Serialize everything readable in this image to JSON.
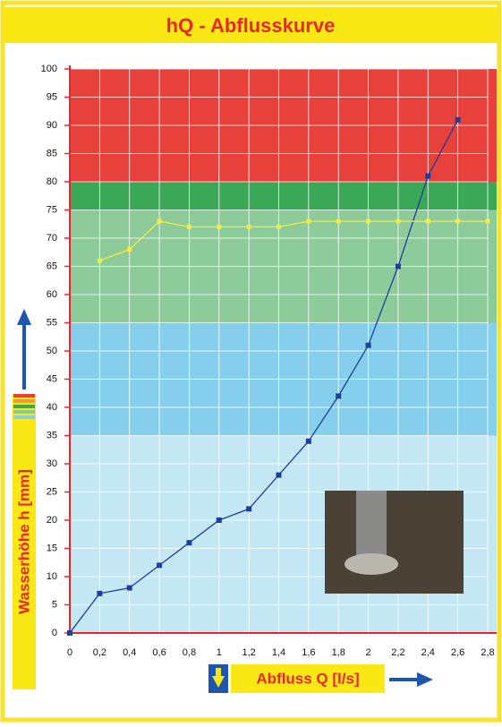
{
  "chart_data": {
    "type": "line",
    "title": "hQ - Abflusskurve",
    "x_label": "Abfluss Q [l/s]",
    "y_label": "Wasserhöhe h [mm]",
    "xlim": [
      0,
      2.8
    ],
    "ylim": [
      0,
      100
    ],
    "xticks": [
      0,
      {
        "value": 0.2,
        "label": "0,2"
      },
      {
        "value": 0.4,
        "label": "0,4"
      },
      {
        "value": 0.6,
        "label": "0,6"
      },
      {
        "value": 0.8,
        "label": "0,8"
      },
      1,
      {
        "value": 1.2,
        "label": "1,2"
      },
      {
        "value": 1.4,
        "label": "1,4"
      },
      {
        "value": 1.6,
        "label": "1,6"
      },
      {
        "value": 1.8,
        "label": "1,8"
      },
      2,
      {
        "value": 2.2,
        "label": "2,2"
      },
      {
        "value": 2.4,
        "label": "2,4"
      },
      {
        "value": 2.6,
        "label": "2,6"
      },
      {
        "value": 2.8,
        "label": "2,8"
      }
    ],
    "yticks": [
      0,
      5,
      10,
      15,
      20,
      25,
      30,
      35,
      40,
      45,
      50,
      55,
      60,
      65,
      70,
      75,
      80,
      85,
      90,
      95,
      100
    ],
    "grid": true,
    "bands": [
      {
        "from": 80,
        "to": 100,
        "color": "#e8403a"
      },
      {
        "from": 75,
        "to": 80,
        "color": "#3aa857"
      },
      {
        "from": 55,
        "to": 75,
        "color": "#8ecb9a"
      },
      {
        "from": 35,
        "to": 55,
        "color": "#86cfec"
      },
      {
        "from": 0,
        "to": 35,
        "color": "#c4e7f4"
      }
    ],
    "series": [
      {
        "color": "#1d3f9c",
        "x": [
          0,
          0.2,
          0.4,
          0.6,
          0.8,
          1,
          1.2,
          1.4,
          1.6,
          1.8,
          2,
          2.2,
          2.4,
          2.6
        ],
        "values": [
          0,
          7,
          8,
          12,
          16,
          20,
          22,
          28,
          34,
          42,
          51,
          65,
          81,
          91
        ]
      },
      {
        "color": "#f4ec3c",
        "x": [
          0.2,
          0.4,
          0.6,
          0.8,
          1,
          1.2,
          1.4,
          1.6,
          1.8,
          2,
          2.2,
          2.4,
          2.6,
          2.8
        ],
        "values": [
          66,
          68,
          73,
          72,
          72,
          72,
          72,
          73,
          73,
          73,
          73,
          73,
          73,
          73
        ]
      }
    ]
  }
}
